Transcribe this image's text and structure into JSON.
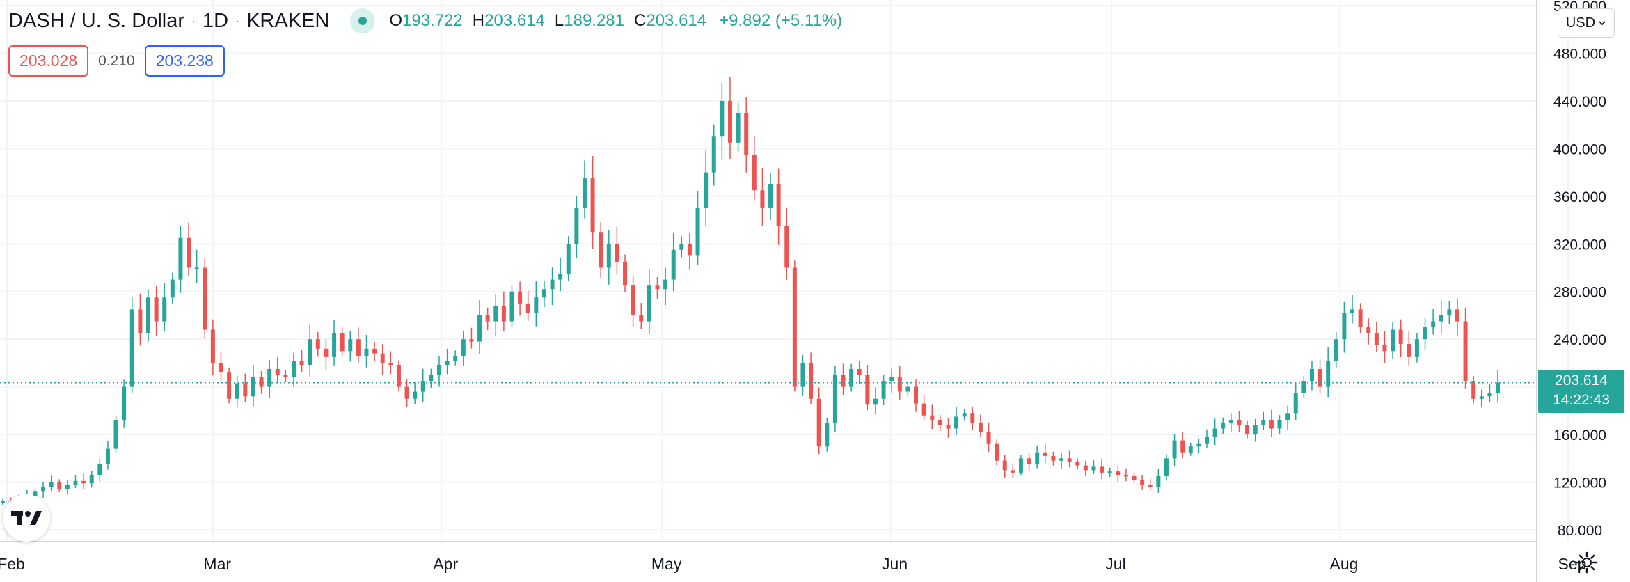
{
  "header": {
    "symbol": "DASH / U. S. Dollar",
    "interval": "1D",
    "exchange": "KRAKEN",
    "open_label": "O",
    "open": "193.722",
    "high_label": "H",
    "high": "203.614",
    "low_label": "L",
    "low": "189.281",
    "close_label": "C",
    "close": "203.614",
    "change": "+9.892 (+5.11%)"
  },
  "quote": {
    "sell": "203.028",
    "spread": "0.210",
    "buy": "203.238"
  },
  "currency_select": {
    "value": "USD"
  },
  "last_price": {
    "price": "203.614",
    "countdown": "14:22:43"
  },
  "icons": {
    "logo": "tradingview-logo",
    "settings": "gear-icon",
    "live": "market-open-dot",
    "dropdown": "chevron-down-icon"
  },
  "colors": {
    "up": "#26a69a",
    "down": "#ef5350",
    "grid": "#f0f3fa",
    "axis_text": "#131722"
  },
  "chart_data": {
    "type": "candlestick",
    "symbol": "DASH / U. S. Dollar",
    "ylim": [
      80,
      520
    ],
    "y_ticks": [
      "80.000",
      "120.000",
      "160.000",
      "200.000",
      "240.000",
      "280.000",
      "320.000",
      "360.000",
      "400.000",
      "440.000",
      "480.000",
      "520.000"
    ],
    "x_ticks": [
      {
        "label": "Feb",
        "date": "2021-02-01"
      },
      {
        "label": "Mar",
        "date": "2021-03-01"
      },
      {
        "label": "Apr",
        "date": "2021-04-01"
      },
      {
        "label": "May",
        "date": "2021-05-01"
      },
      {
        "label": "Jun",
        "date": "2021-06-01"
      },
      {
        "label": "Jul",
        "date": "2021-07-01"
      },
      {
        "label": "Aug",
        "date": "2021-08-01"
      },
      {
        "label": "Sep",
        "date": "2021-09-01"
      }
    ],
    "x_start": "2021-02-01",
    "closes": [
      104,
      103,
      105,
      108,
      112,
      116,
      120,
      114,
      118,
      121,
      119,
      126,
      135,
      148,
      172,
      200,
      265,
      245,
      275,
      255,
      275,
      290,
      325,
      300,
      300,
      248,
      220,
      212,
      190,
      203,
      192,
      208,
      200,
      215,
      210,
      208,
      222,
      218,
      240,
      232,
      225,
      245,
      230,
      240,
      226,
      232,
      228,
      220,
      218,
      200,
      190,
      196,
      205,
      210,
      218,
      222,
      226,
      240,
      238,
      260,
      255,
      268,
      255,
      280,
      270,
      262,
      275,
      282,
      290,
      295,
      320,
      350,
      375,
      330,
      300,
      320,
      305,
      285,
      260,
      255,
      285,
      282,
      290,
      315,
      320,
      310,
      350,
      380,
      410,
      440,
      405,
      430,
      395,
      365,
      350,
      370,
      335,
      300,
      200,
      220,
      190,
      150,
      170,
      210,
      200,
      215,
      210,
      185,
      190,
      205,
      208,
      196,
      200,
      186,
      176,
      172,
      168,
      165,
      175,
      178,
      170,
      162,
      152,
      138,
      130,
      128,
      140,
      135,
      145,
      142,
      138,
      140,
      137,
      134,
      130,
      133,
      128,
      129,
      126,
      125,
      122,
      118,
      116,
      125,
      140,
      155,
      145,
      150,
      152,
      158,
      165,
      170,
      172,
      168,
      160,
      168,
      172,
      165,
      172,
      178,
      195,
      205,
      215,
      200,
      222,
      240,
      262,
      265,
      250,
      245,
      235,
      230,
      248,
      236,
      225,
      240,
      250,
      255,
      260,
      265,
      255,
      205,
      190,
      192,
      195,
      203.614
    ]
  }
}
